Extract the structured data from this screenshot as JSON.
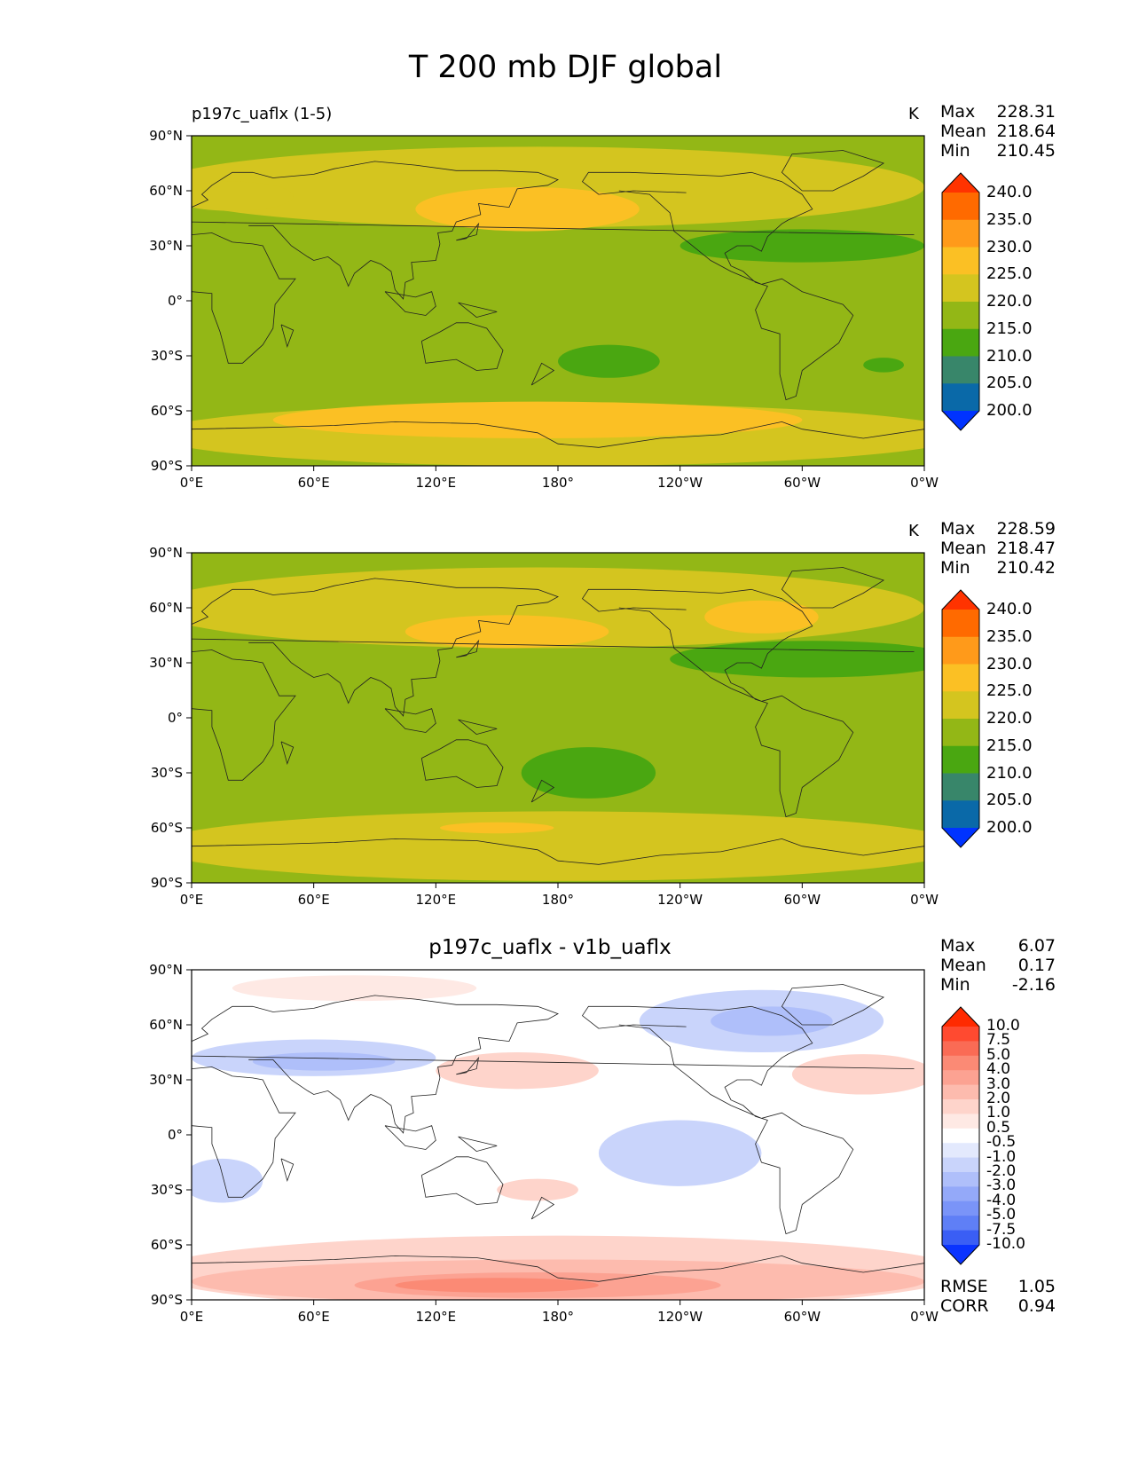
{
  "title": "T 200 mb DJF global",
  "axis_ticks": {
    "lat": [
      "90°N",
      "60°N",
      "30°N",
      "0°",
      "30°S",
      "60°S",
      "90°S"
    ],
    "lon": [
      "0°E",
      "60°E",
      "120°E",
      "180°",
      "120°W",
      "60°W",
      "0°W"
    ]
  },
  "panels": [
    {
      "title_left": "p197c_uaflx (1-5)",
      "title_center": "",
      "units": "K",
      "stats": {
        "max_label": "Max",
        "max": "228.31",
        "mean_label": "Mean",
        "mean": "218.64",
        "min_label": "Min",
        "min": "210.45"
      },
      "colorbar_labels": [
        "240.0",
        "235.0",
        "230.0",
        "225.0",
        "220.0",
        "215.0",
        "210.0",
        "205.0",
        "200.0"
      ],
      "colorbar_colors": [
        "#ff3300",
        "#ff6a00",
        "#ff9a1a",
        "#fbc024",
        "#d4c51f",
        "#93b716",
        "#4aa711",
        "#38866a",
        "#0a69a8",
        "#0033ff"
      ]
    },
    {
      "title_left": "",
      "title_center": "",
      "units": "K",
      "stats": {
        "max_label": "Max",
        "max": "228.59",
        "mean_label": "Mean",
        "mean": "218.47",
        "min_label": "Min",
        "min": "210.42"
      },
      "colorbar_labels": [
        "240.0",
        "235.0",
        "230.0",
        "225.0",
        "220.0",
        "215.0",
        "210.0",
        "205.0",
        "200.0"
      ],
      "colorbar_colors": [
        "#ff3300",
        "#ff6a00",
        "#ff9a1a",
        "#fbc024",
        "#d4c51f",
        "#93b716",
        "#4aa711",
        "#38866a",
        "#0a69a8",
        "#0033ff"
      ]
    },
    {
      "title_left": "",
      "title_center": "p197c_uaflx - v1b_uaflx",
      "units": "",
      "stats": {
        "max_label": "Max",
        "max": "6.07",
        "mean_label": "Mean",
        "mean": "0.17",
        "min_label": "Min",
        "min": "-2.16"
      },
      "colorbar_labels": [
        "10.0",
        "7.5",
        "5.0",
        "4.0",
        "3.0",
        "2.0",
        "1.0",
        "0.5",
        "-0.5",
        "-1.0",
        "-2.0",
        "-3.0",
        "-4.0",
        "-5.0",
        "-7.5",
        "-10.0"
      ],
      "colorbar_colors": [
        "#ff2a00",
        "#ff4a30",
        "#fa6b55",
        "#fb8a75",
        "#fca292",
        "#fdbbae",
        "#fed4cb",
        "#fee9e4",
        "#ffffff",
        "#e3e9fd",
        "#c9d4fb",
        "#afbffa",
        "#94a9f9",
        "#7a94f8",
        "#5f7ff6",
        "#3a5ef5",
        "#0a33ff"
      ],
      "rmse_label": "RMSE",
      "rmse": "1.05",
      "corr_label": "CORR",
      "corr": "0.94"
    }
  ]
}
